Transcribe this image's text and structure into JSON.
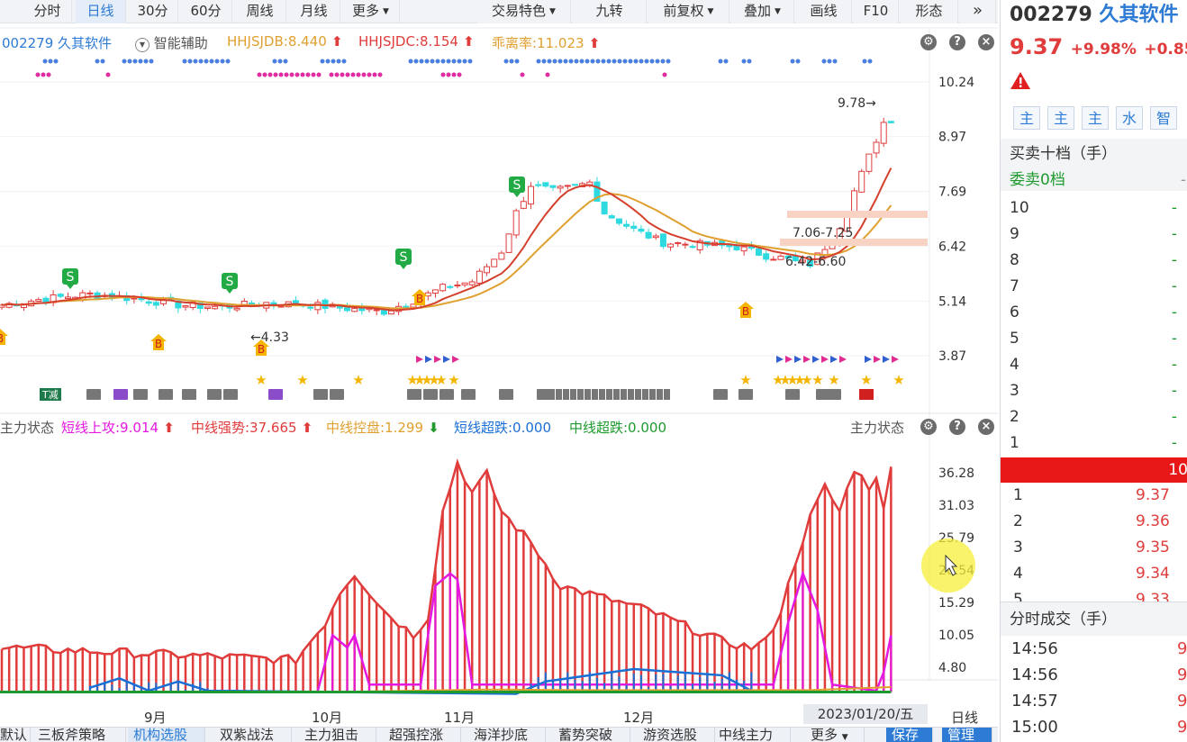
{
  "toolbar": {
    "tabs": [
      "分时",
      "日线",
      "30分",
      "60分",
      "周线",
      "月线",
      "更多"
    ],
    "active_tab": "日线",
    "right_buttons": [
      "交易特色",
      "九转",
      "前复权",
      "叠加",
      "画线",
      "F10",
      "形态"
    ],
    "collapse_label": "»"
  },
  "main_chart": {
    "code_name": "002279 久其软件",
    "assist_label": "智能辅助",
    "ind1": "HHJSJDB:8.440",
    "ind2": "HHJSJDC:8.154",
    "ind3": "乖离率:11.023",
    "price_ticks": [
      "10.24",
      "8.97",
      "7.69",
      "6.42",
      "5.14",
      "3.87"
    ],
    "annotations": {
      "high": "9.78→",
      "low": "←4.33",
      "zone1": "7.06-7.25",
      "zone2": "6.42-6.60"
    },
    "signal_letters": {
      "sell": "S",
      "buy": "B",
      "reduce": "T减"
    }
  },
  "sub_chart": {
    "title": "主力状态",
    "right_title": "主力状态",
    "ind1": "短线上攻:9.014",
    "ind2": "中线强势:37.665",
    "ind3": "中线控盘:1.299",
    "ind4": "短线超跌:0.000",
    "ind5": "中线超跌:0.000",
    "ticks": [
      "36.28",
      "31.03",
      "25.79",
      "20.54",
      "15.29",
      "10.05",
      "4.80"
    ]
  },
  "x_axis": {
    "labels": [
      "9月",
      "10月",
      "11月",
      "12月"
    ],
    "date": "2023/01/20/五",
    "period": "日线"
  },
  "bottom_tabs": [
    "默认",
    "三板斧策略",
    "机构选股",
    "双紫战法",
    "主力狙击",
    "超强控涨",
    "海洋抄底",
    "蓄势突破",
    "游资选股",
    "中线主力",
    "更多",
    "保存",
    "管理"
  ],
  "bottom_active": "机构选股",
  "quote": {
    "code": "002279",
    "name": "久其软件",
    "price": "9.37",
    "pct": "+9.98%",
    "change": "+0.85",
    "warning_icon": "warning-icon",
    "tags": [
      "主",
      "主",
      "主",
      "水",
      "智"
    ],
    "level_title": "买卖十档（手）",
    "sell_label": "委卖0档",
    "sell_levels": [
      "10",
      "9",
      "8",
      "7",
      "6",
      "5",
      "4",
      "3",
      "2",
      "1"
    ],
    "dash": "-",
    "mid_value": "10",
    "buy_levels": [
      {
        "n": "1",
        "p": "9.37"
      },
      {
        "n": "2",
        "p": "9.36"
      },
      {
        "n": "3",
        "p": "9.35"
      },
      {
        "n": "4",
        "p": "9.34"
      },
      {
        "n": "5",
        "p": "9.33"
      }
    ],
    "trades_title": "分时成交（手）",
    "trades": [
      {
        "t": "14:56",
        "p": "9"
      },
      {
        "t": "14:56",
        "p": "9"
      },
      {
        "t": "14:57",
        "p": "9"
      },
      {
        "t": "15:00",
        "p": "9"
      }
    ]
  },
  "colors": {
    "up": "#e03c3c",
    "down": "#2fd9e0",
    "accent": "#2d7bd4",
    "ma1": "#d4402c",
    "ma2": "#e0a030",
    "magenta": "#e418e0",
    "blue": "#1a6fd4",
    "green": "#1e9a2e",
    "zone": "#f8d2c2"
  }
}
